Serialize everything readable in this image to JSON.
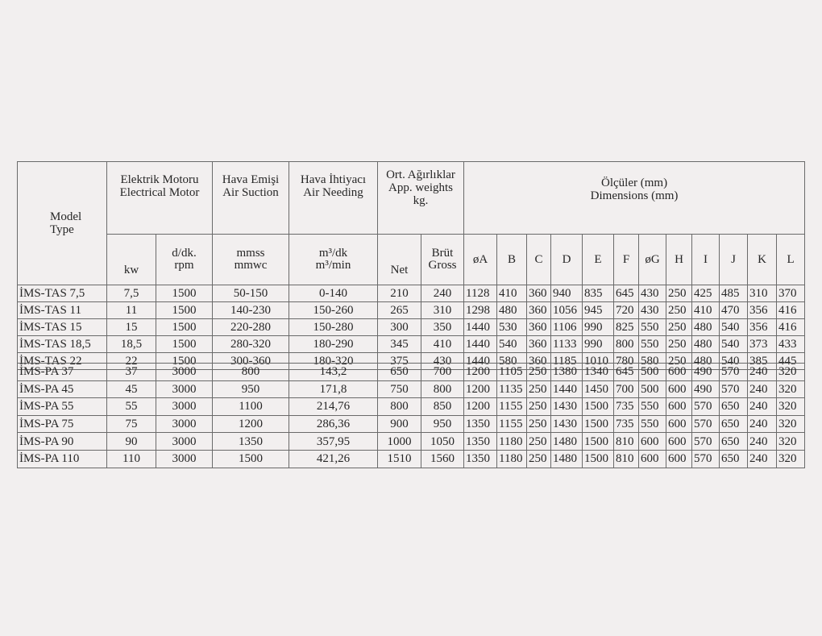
{
  "header": {
    "model": [
      "Model",
      "Type"
    ],
    "motor": [
      "Elektrik Motoru",
      "Electrical Motor"
    ],
    "suction": [
      "Hava Emişi",
      "Air Suction"
    ],
    "needing": [
      "Hava İhtiyacı",
      "Air Needing"
    ],
    "weights": [
      "Ort. Ağırlıklar",
      "App. weights",
      "kg."
    ],
    "dimensions": [
      "Ölçüler (mm)",
      "Dimensions (mm)"
    ],
    "kw": "kw",
    "rpm": [
      "d/dk.",
      "rpm"
    ],
    "mmss": [
      "mmss",
      "mmwc"
    ],
    "m3": [
      "m³/dk",
      "m³/min"
    ],
    "net": "Net",
    "gross": [
      "Brüt",
      "Gross"
    ],
    "dims": [
      "øA",
      "B",
      "C",
      "D",
      "E",
      "F",
      "øG",
      "H",
      "I",
      "J",
      "K",
      "L"
    ]
  },
  "tas_rows": [
    [
      "İMS-TAS 7,5",
      "7,5",
      "1500",
      "50-150",
      "0-140",
      "210",
      "240",
      "1128",
      "410",
      "360",
      "940",
      "835",
      "645",
      "430",
      "250",
      "425",
      "485",
      "310",
      "370"
    ],
    [
      "İMS-TAS 11",
      "11",
      "1500",
      "140-230",
      "150-260",
      "265",
      "310",
      "1298",
      "480",
      "360",
      "1056",
      "945",
      "720",
      "430",
      "250",
      "410",
      "470",
      "356",
      "416"
    ],
    [
      "İMS-TAS 15",
      "15",
      "1500",
      "220-280",
      "150-280",
      "300",
      "350",
      "1440",
      "530",
      "360",
      "1106",
      "990",
      "825",
      "550",
      "250",
      "480",
      "540",
      "356",
      "416"
    ],
    [
      "İMS-TAS 18,5",
      "18,5",
      "1500",
      "280-320",
      "180-290",
      "345",
      "410",
      "1440",
      "540",
      "360",
      "1133",
      "990",
      "800",
      "550",
      "250",
      "480",
      "540",
      "373",
      "433"
    ],
    [
      "İMS-TAS 22",
      "22",
      "1500",
      "300-360",
      "180-320",
      "375",
      "430",
      "1440",
      "580",
      "360",
      "1185",
      "1010",
      "780",
      "580",
      "250",
      "480",
      "540",
      "385",
      "445"
    ]
  ],
  "pa_rows": [
    [
      "İMS-PA 37",
      "37",
      "3000",
      "800",
      "143,2",
      "650",
      "700",
      "1200",
      "1105",
      "250",
      "1380",
      "1340",
      "645",
      "500",
      "600",
      "490",
      "570",
      "240",
      "320"
    ],
    [
      "İMS-PA 45",
      "45",
      "3000",
      "950",
      "171,8",
      "750",
      "800",
      "1200",
      "1135",
      "250",
      "1440",
      "1450",
      "700",
      "500",
      "600",
      "490",
      "570",
      "240",
      "320"
    ],
    [
      "İMS-PA 55",
      "55",
      "3000",
      "1100",
      "214,76",
      "800",
      "850",
      "1200",
      "1155",
      "250",
      "1430",
      "1500",
      "735",
      "550",
      "600",
      "570",
      "650",
      "240",
      "320"
    ],
    [
      "İMS-PA 75",
      "75",
      "3000",
      "1200",
      "286,36",
      "900",
      "950",
      "1350",
      "1155",
      "250",
      "1430",
      "1500",
      "735",
      "550",
      "600",
      "570",
      "650",
      "240",
      "320"
    ],
    [
      "İMS-PA 90",
      "90",
      "3000",
      "1350",
      "357,95",
      "1000",
      "1050",
      "1350",
      "1180",
      "250",
      "1480",
      "1500",
      "810",
      "600",
      "600",
      "570",
      "650",
      "240",
      "320"
    ],
    [
      "İMS-PA 110",
      "110",
      "3000",
      "1500",
      "421,26",
      "1510",
      "1560",
      "1350",
      "1180",
      "250",
      "1480",
      "1500",
      "810",
      "600",
      "600",
      "570",
      "650",
      "240",
      "320"
    ]
  ]
}
